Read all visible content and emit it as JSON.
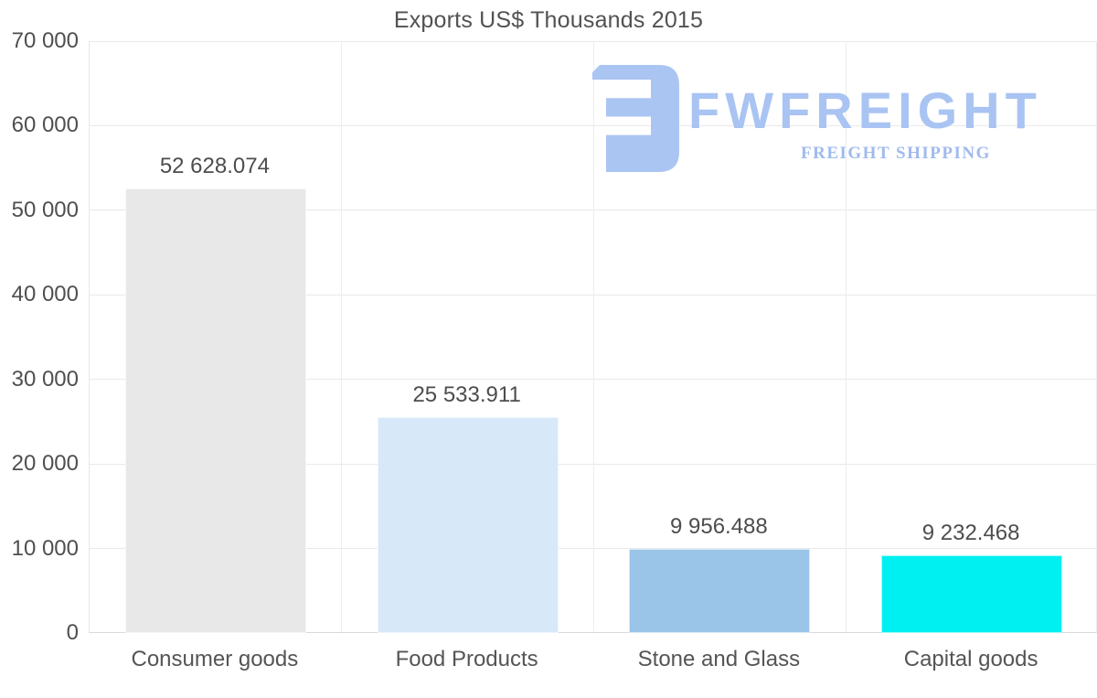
{
  "chart_data": {
    "type": "bar",
    "title": "Exports US$ Thousands 2015",
    "categories": [
      "Consumer goods",
      "Food Products",
      "Stone and Glass",
      "Capital goods"
    ],
    "values": [
      52628.074,
      25533.911,
      9956.488,
      9232.468
    ],
    "value_labels": [
      "52 628.074",
      "25 533.911",
      "9 956.488",
      "9 232.468"
    ],
    "bar_colors": [
      "#e8e8e8",
      "#d7e8f9",
      "#9ac4e8",
      "#00f0f2"
    ],
    "xlabel": "",
    "ylabel": "",
    "ylim": [
      0,
      70000
    ],
    "ytick_step": 10000,
    "ytick_labels": [
      "0",
      "10 000",
      "20 000",
      "30 000",
      "40 000",
      "50 000",
      "60 000",
      "70 000"
    ],
    "grid": true,
    "legend": false
  },
  "watermark": {
    "brand": "FWFREIGHT",
    "tagline": "FREIGHT SHIPPING",
    "brand_color": "#a9c4f2",
    "tagline_color": "#9fbaee",
    "icon": "fwfreight-logo-icon"
  }
}
